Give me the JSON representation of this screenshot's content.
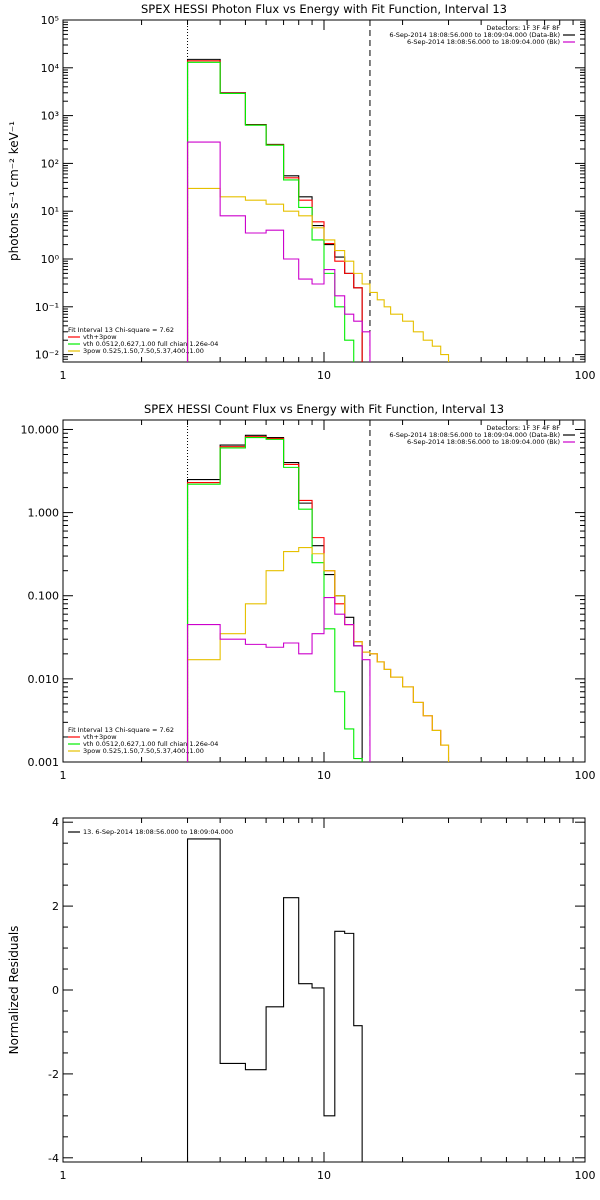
{
  "chart_data": [
    {
      "type": "line",
      "title": "SPEX HESSI Photon Flux vs Energy with Fit Function, Interval 13",
      "ylabel": "photons s⁻¹ cm⁻² keV⁻¹",
      "xscale": "log",
      "yscale": "log",
      "xlim": [
        1,
        100
      ],
      "ylim": [
        0.007,
        100000
      ],
      "xticks": [
        1,
        10,
        100
      ],
      "xtick_labels": [
        "1",
        "10",
        "100"
      ],
      "yticks": [
        0.01,
        0.1,
        1,
        10,
        100,
        1000,
        10000,
        100000
      ],
      "ytick_labels": [
        "10⁻²",
        "10⁻¹",
        "10⁰",
        "10¹",
        "10²",
        "10³",
        "10⁴",
        "10⁵"
      ],
      "vlines": [
        {
          "x": 3,
          "style": "dotted"
        },
        {
          "x": 15,
          "style": "dashed"
        }
      ],
      "legend_topright": {
        "lines": [
          "Detectors: 1F 3F 4F 8F",
          "6-Sep-2014 18:08:56.000 to 18:09:04.000 (Data-Bk)",
          "6-Sep-2014 18:08:56.000 to 18:09:04.000 (Bk)"
        ],
        "colors": [
          "",
          "#000000",
          "#cc00cc"
        ]
      },
      "legend_bottomleft": {
        "header": "Fit Interval 13   Chi-square = 7.62",
        "lines": [
          "vth+3pow",
          "vth 0.0512,0.627,1.00  full chian 1.26e-04",
          "3pow 0.525,1.50,7.50,5.37,400.,1.00"
        ],
        "colors": [
          "#ff0000",
          "#00ee00",
          "#e6c000"
        ]
      },
      "edges": [
        3,
        4,
        5,
        6,
        7,
        8,
        9,
        10,
        11,
        12,
        13,
        14,
        15,
        16,
        17,
        18,
        20,
        22,
        24,
        26,
        28,
        30
      ],
      "series": [
        {
          "name": "Data-Bk",
          "color": "#000000",
          "values": [
            15000,
            3000,
            650,
            250,
            55,
            20,
            5,
            2,
            1.1,
            0.5,
            0.25
          ]
        },
        {
          "name": "vth+3pow",
          "color": "#ff0000",
          "values": [
            14000,
            2950,
            640,
            245,
            50,
            17,
            6,
            2.1,
            0.9,
            0.5,
            0.25
          ]
        },
        {
          "name": "vth",
          "color": "#00ee00",
          "values": [
            13000,
            2900,
            630,
            240,
            45,
            12,
            2.5,
            0.5,
            0.1,
            0.02,
            0.004
          ]
        },
        {
          "name": "3pow",
          "color": "#e6c000",
          "values": [
            30,
            20,
            17,
            14,
            10,
            8,
            4.5,
            2.5,
            1.5,
            0.9,
            0.5,
            0.3,
            0.2,
            0.14,
            0.1,
            0.07,
            0.05,
            0.03,
            0.02,
            0.015,
            0.01
          ]
        },
        {
          "name": "Bk",
          "color": "#cc00cc",
          "values": [
            280,
            8,
            3.5,
            4,
            1,
            0.38,
            0.3,
            0.6,
            0.17,
            0.07,
            0.05,
            0.03
          ]
        }
      ]
    },
    {
      "type": "line",
      "title": "SPEX HESSI Count Flux vs Energy with Fit Function, Interval 13",
      "ylabel": "",
      "xscale": "log",
      "yscale": "log",
      "xlim": [
        1,
        100
      ],
      "ylim": [
        0.001,
        13
      ],
      "xticks": [
        1,
        10,
        100
      ],
      "xtick_labels": [
        "1",
        "10",
        "100"
      ],
      "yticks": [
        0.001,
        0.01,
        0.1,
        1,
        10
      ],
      "ytick_labels": [
        "0.001",
        "0.010",
        "0.100",
        "1.000",
        "10.000"
      ],
      "vlines": [
        {
          "x": 3,
          "style": "dotted"
        },
        {
          "x": 15,
          "style": "dashed"
        }
      ],
      "legend_topright": {
        "lines": [
          "Detectors: 1F 3F 4F 8F",
          "6-Sep-2014 18:08:56.000 to 18:09:04.000 (Data-Bk)",
          "6-Sep-2014 18:08:56.000 to 18:09:04.000 (Bk)"
        ],
        "colors": [
          "",
          "#000000",
          "#cc00cc"
        ]
      },
      "legend_bottomleft": {
        "header": "Fit Interval 13   Chi-square = 7.62",
        "lines": [
          "vth+3pow",
          "vth 0.0512,0.627,1.00  full chian 1.26e-04",
          "3pow 0.525,1.50,7.50,5.37,400.,1.00"
        ],
        "colors": [
          "#ff0000",
          "#00ee00",
          "#e6c000"
        ]
      },
      "edges": [
        3,
        4,
        5,
        6,
        7,
        8,
        9,
        10,
        11,
        12,
        13,
        14,
        15,
        16,
        17,
        18,
        20,
        22,
        24,
        26,
        28,
        30
      ],
      "series": [
        {
          "name": "Data-Bk",
          "color": "#000000",
          "values": [
            2.5,
            6.5,
            8.5,
            8,
            4,
            1.3,
            0.4,
            0.18,
            0.1,
            0.055,
            0.025
          ]
        },
        {
          "name": "vth+3pow",
          "color": "#ff0000",
          "values": [
            2.3,
            6.2,
            8.2,
            7.8,
            3.8,
            1.4,
            0.5,
            0.2,
            0.08,
            0.045,
            0.028,
            0.021,
            0.02,
            0.016,
            0.013,
            0.0105,
            0.008,
            0.0052,
            0.0036,
            0.0024,
            0.0016
          ]
        },
        {
          "name": "vth",
          "color": "#00ee00",
          "values": [
            2.2,
            6,
            8,
            7.6,
            3.5,
            1.1,
            0.25,
            0.04,
            0.007,
            0.0025,
            0.0011
          ]
        },
        {
          "name": "3pow",
          "color": "#e6c000",
          "values": [
            0.017,
            0.035,
            0.08,
            0.2,
            0.34,
            0.38,
            0.32,
            0.2,
            0.1,
            0.045,
            0.028,
            0.021,
            0.02,
            0.016,
            0.013,
            0.0105,
            0.008,
            0.0052,
            0.0036,
            0.0024,
            0.0016
          ]
        },
        {
          "name": "Bk",
          "color": "#cc00cc",
          "values": [
            0.045,
            0.03,
            0.026,
            0.024,
            0.027,
            0.02,
            0.035,
            0.095,
            0.06,
            0.045,
            0.025,
            0.017
          ]
        }
      ]
    },
    {
      "type": "line",
      "title": "",
      "ylabel": "Normalized Residuals",
      "xscale": "log",
      "yscale": "linear",
      "xlim": [
        1,
        100
      ],
      "ylim": [
        -4.1,
        4.1
      ],
      "xticks": [
        1,
        10,
        100
      ],
      "xtick_labels": [
        "1",
        "10",
        "100"
      ],
      "yticks": [
        -4,
        -2,
        0,
        2,
        4
      ],
      "ytick_labels": [
        "-4",
        "-2",
        "0",
        "2",
        "4"
      ],
      "legend_topleft": "13.  6-Sep-2014 18:08:56.000 to 18:09:04.000",
      "edges": [
        3,
        4,
        5,
        6,
        7,
        8,
        9,
        10,
        11,
        12,
        13,
        14,
        15
      ],
      "series": [
        {
          "name": "13.  6-Sep-2014 18:08:56.000 to 18:09:04.000",
          "color": "#000000",
          "values": [
            3.6,
            -1.75,
            -1.9,
            -0.4,
            2.2,
            0.15,
            0.05,
            -3.0,
            1.4,
            1.35,
            -0.85
          ]
        }
      ]
    }
  ]
}
